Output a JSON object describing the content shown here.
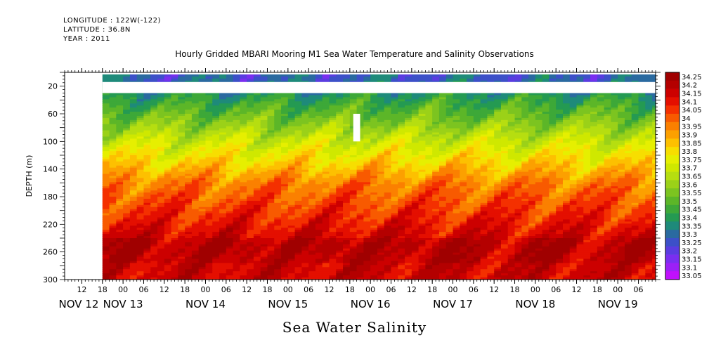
{
  "header": {
    "longitude": "LONGITUDE : 122W(-122)",
    "latitude": "LATITUDE : 36.8N",
    "year": "YEAR : 2011"
  },
  "title": "Hourly Gridded MBARI Mooring M1 Sea Water Temperature and Salinity Observations",
  "footer_title": "Sea Water Salinity",
  "chart_data": {
    "type": "heatmap",
    "title": "Hourly Gridded MBARI Mooring M1 Sea Water Temperature and Salinity Observations",
    "subtitle": "Sea Water Salinity",
    "ylabel": "DEPTH (m)",
    "xlabel": "",
    "ylim": [
      300,
      0
    ],
    "y_reversed": true,
    "y_ticks": [
      20,
      60,
      100,
      140,
      180,
      220,
      260,
      300
    ],
    "x_hour_ticks": [
      "12",
      "18",
      "00",
      "06",
      "12",
      "18",
      "00",
      "06",
      "12",
      "18",
      "00",
      "06",
      "12",
      "18",
      "00",
      "06",
      "12",
      "18",
      "00",
      "06",
      "12",
      "18",
      "00",
      "06",
      "12",
      "18",
      "00",
      "06",
      "12",
      "18",
      "00",
      "06"
    ],
    "x_day_labels": [
      "NOV 12",
      "NOV 13",
      "NOV 14",
      "NOV 15",
      "NOV 16",
      "NOV 17",
      "NOV 18",
      "NOV 19"
    ],
    "x_range": [
      "2011-11-12T07:00",
      "2011-11-19T11:00"
    ],
    "data_start": "2011-11-12T18:00",
    "colorbar": {
      "levels": [
        "34.25",
        "34.2",
        "34.15",
        "34.1",
        "34.05",
        "34",
        "33.95",
        "33.9",
        "33.85",
        "33.8",
        "33.75",
        "33.7",
        "33.65",
        "33.6",
        "33.55",
        "33.5",
        "33.45",
        "33.4",
        "33.35",
        "33.3",
        "33.25",
        "33.2",
        "33.15",
        "33.1",
        "33.05"
      ],
      "colors": [
        "#a00000",
        "#b40000",
        "#cc0000",
        "#e40f00",
        "#f43000",
        "#f85a00",
        "#fb8000",
        "#fca000",
        "#fdc000",
        "#f7de00",
        "#e6ef00",
        "#cfe800",
        "#b6de10",
        "#9bd118",
        "#7cc420",
        "#5cb628",
        "#3da838",
        "#249a52",
        "#1e8a7a",
        "#2a6aa0",
        "#3c50c8",
        "#5a3ce0",
        "#7a2ef0",
        "#9c20f6",
        "#c010fc"
      ]
    },
    "profile": {
      "depths": [
        10,
        40,
        70,
        100,
        130,
        160,
        190,
        220,
        250,
        280,
        300
      ],
      "salinity": [
        33.3,
        33.45,
        33.58,
        33.72,
        33.84,
        33.98,
        34.05,
        34.12,
        34.2,
        34.18,
        34.18
      ]
    },
    "gaps": [
      {
        "depth_range": [
          14,
          30
        ],
        "time_range": [
          "2011-11-12T18:00",
          "2011-11-19T11:00"
        ]
      },
      {
        "depth_range": [
          60,
          100
        ],
        "time_range": [
          "2011-11-15T19:00",
          "2011-11-15T21:00"
        ]
      }
    ],
    "grid": false,
    "legend_position": "right"
  }
}
